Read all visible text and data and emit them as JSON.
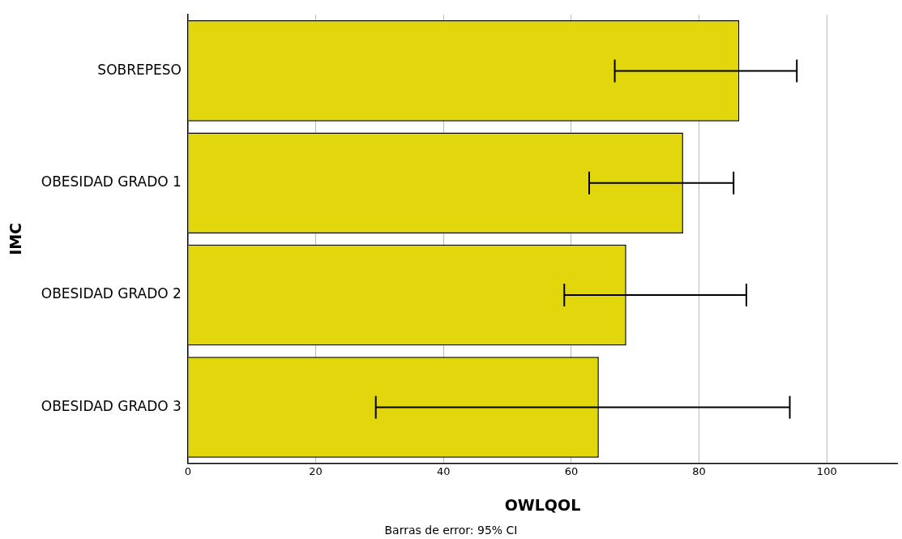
{
  "chart_data": {
    "type": "bar",
    "orientation": "horizontal",
    "xlabel": "OWLQOL",
    "ylabel": "IMC",
    "categories": [
      "SOBREPESO",
      "OBESIDAD GRADO 1",
      "OBESIDAD GRADO 2",
      "OBESIDAD GRADO 3"
    ],
    "values": [
      86.3,
      77.5,
      68.6,
      64.3
    ],
    "color": "#e2d70d",
    "errors": [
      [
        66.8,
        95.3
      ],
      [
        62.8,
        85.4
      ],
      [
        58.9,
        87.4
      ],
      [
        29.4,
        94.2
      ]
    ],
    "xlim": [
      0,
      111
    ],
    "xticks": [
      0,
      20,
      40,
      60,
      80,
      100
    ],
    "grid": "x",
    "legend": false,
    "annotations": [
      "Barras de error: 95% CI"
    ]
  }
}
